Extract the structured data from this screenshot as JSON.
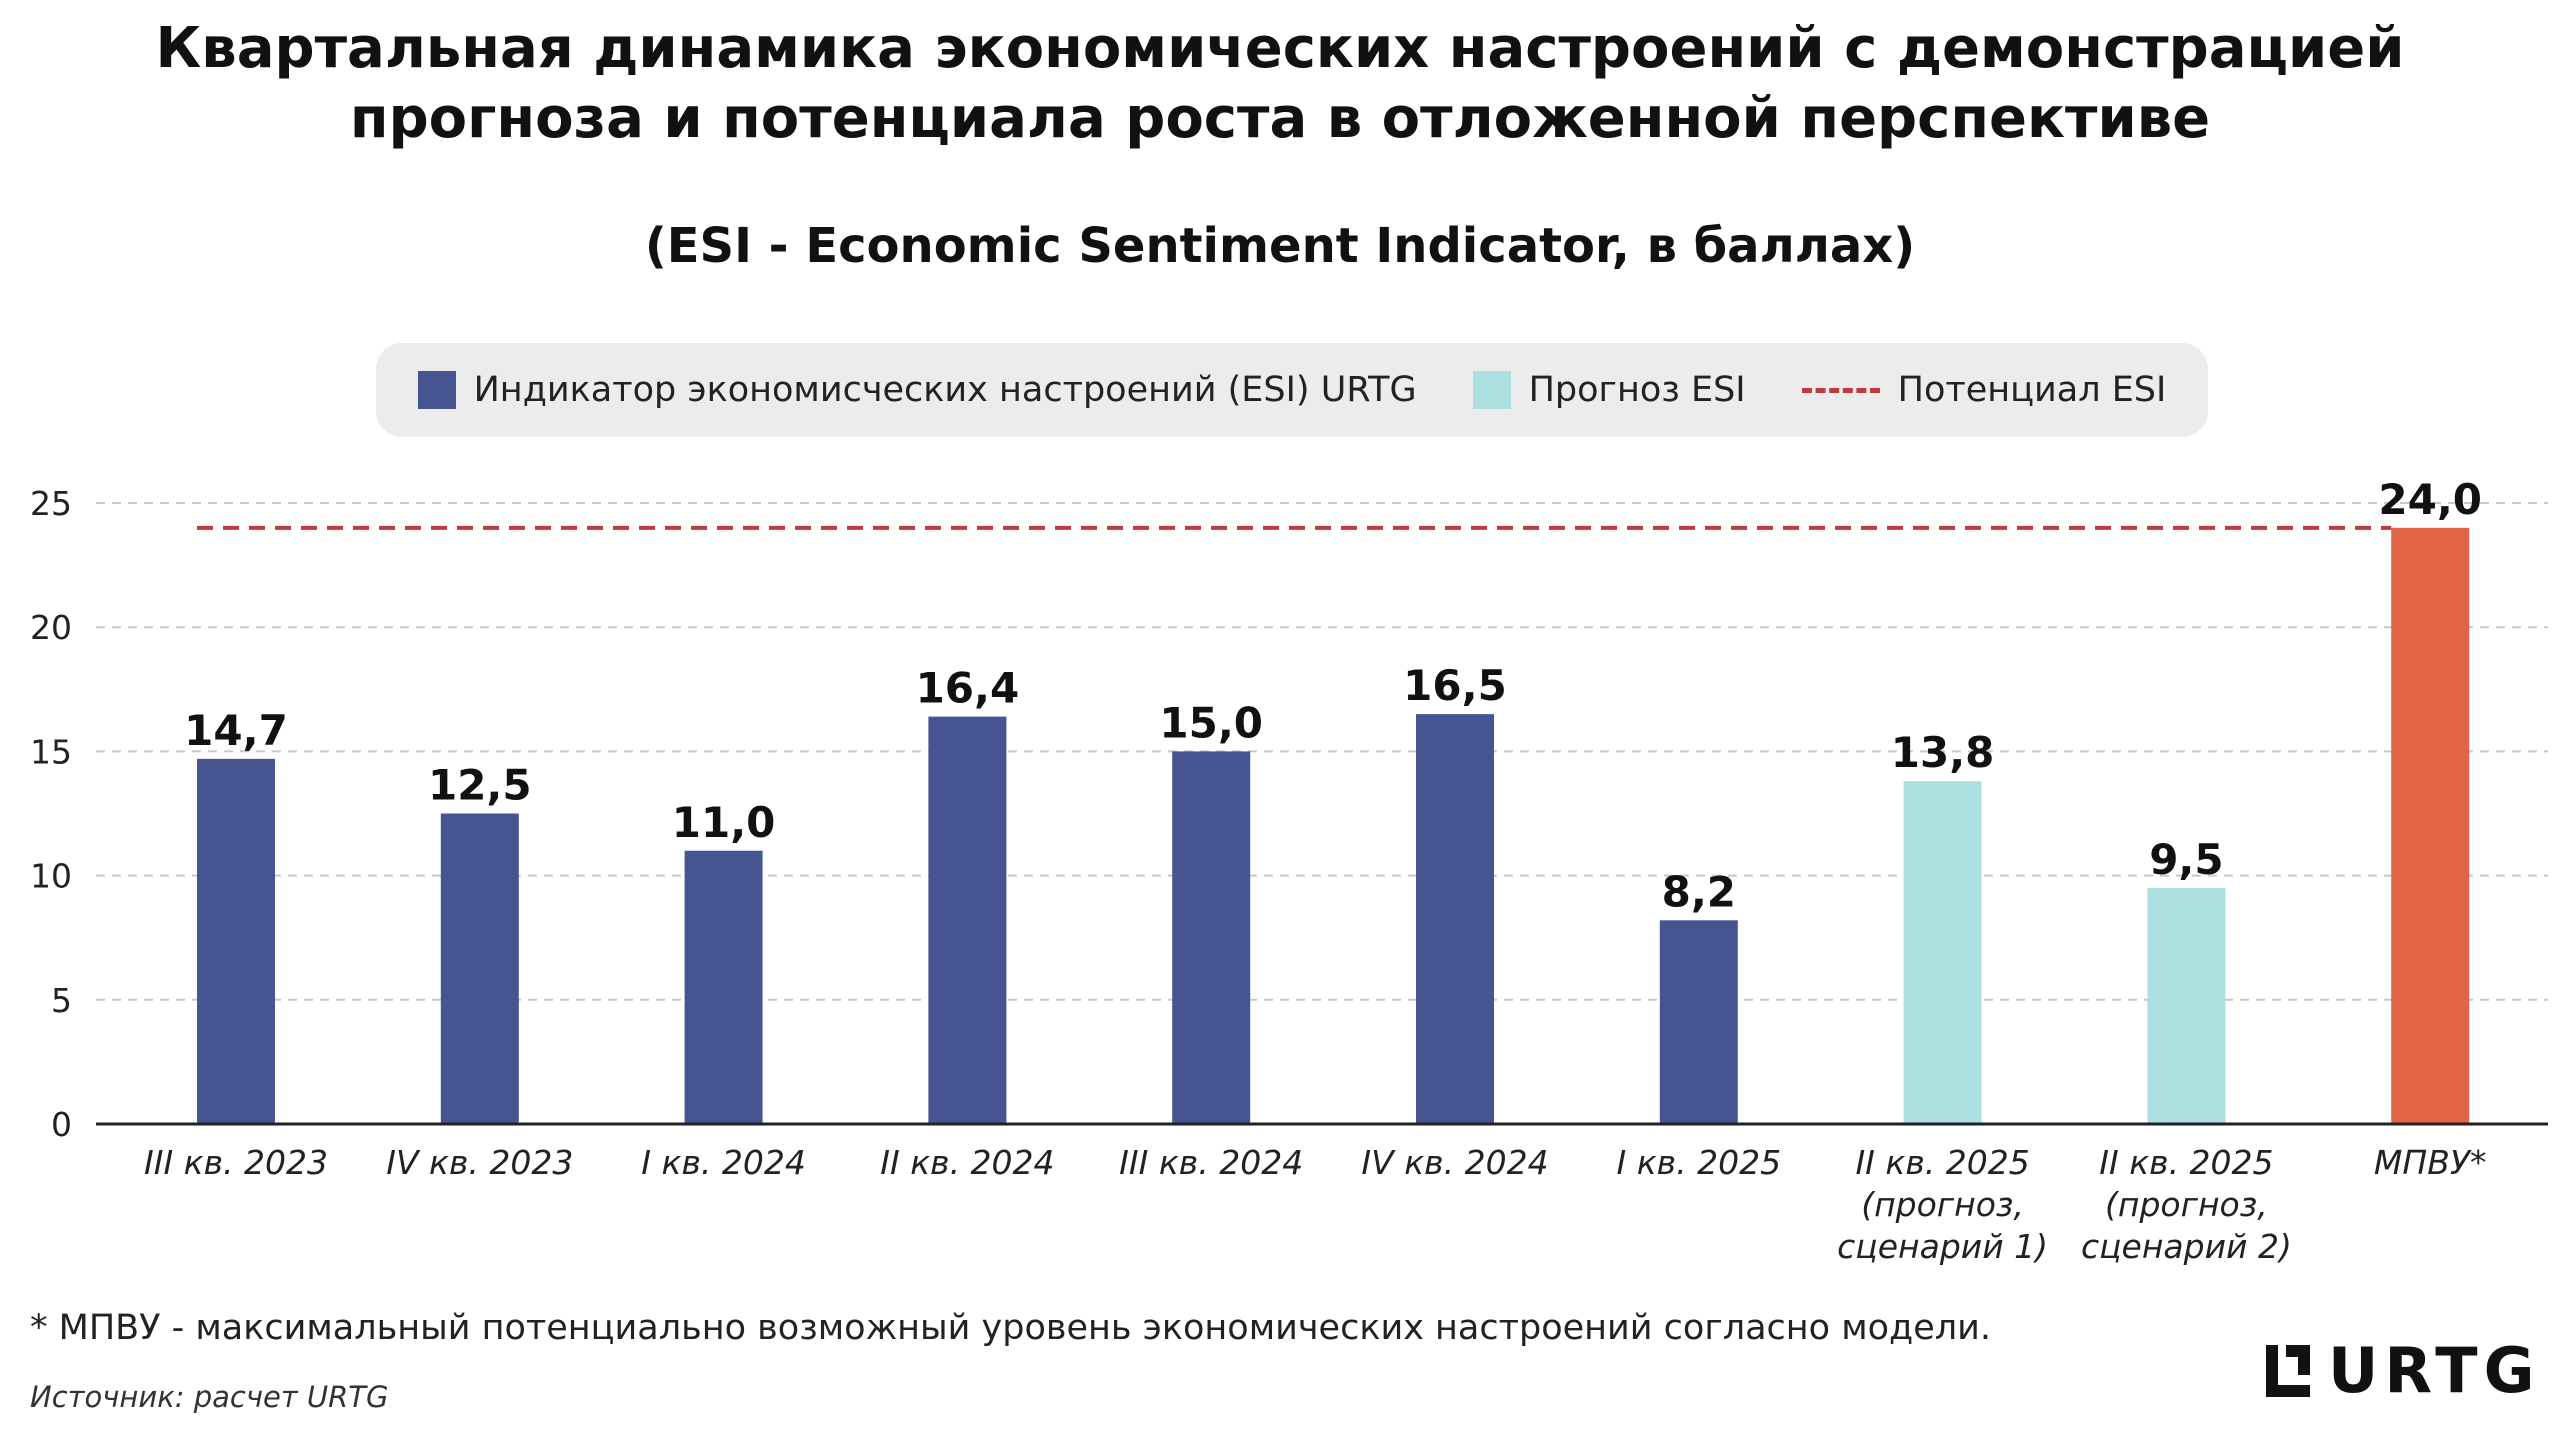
{
  "title_line1": "Квартальная динамика экономических настроений с демонстрацией",
  "title_line2": "прогноза и потенциала роста в отложенной перспективе",
  "subtitle": "(ESI - Economic Sentiment Indicator, в баллах)",
  "legend": {
    "esi": "Индикатор экономисческих настроений (ESI) URTG",
    "forecast": "Прогноз ESI",
    "potential": "Потенциал ESI"
  },
  "footnote": "* МПВУ - максимальный потенциально возможный уровень экономических настроений согласно модели.",
  "source": "Источник: расчет URTG",
  "logo_text": "URTG",
  "colors": {
    "esi": "#465592",
    "forecast": "#acdfe0",
    "max": "#e26446",
    "potential_line": "#c0393b",
    "grid": "#c8c8c8"
  },
  "chart_data": {
    "type": "bar",
    "categories": [
      [
        "III кв. 2023"
      ],
      [
        "IV кв. 2023"
      ],
      [
        "I кв. 2024"
      ],
      [
        "II кв. 2024"
      ],
      [
        "III кв. 2024"
      ],
      [
        "IV кв. 2024"
      ],
      [
        "I кв. 2025"
      ],
      [
        "II кв. 2025",
        "(прогноз,",
        "сценарий 1)"
      ],
      [
        "II кв. 2025",
        "(прогноз,",
        "сценарий 2)"
      ],
      [
        "МПВУ*"
      ]
    ],
    "values": [
      14.7,
      12.5,
      11.0,
      16.4,
      15.0,
      16.5,
      8.2,
      13.8,
      9.5,
      24.0
    ],
    "value_labels": [
      "14,7",
      "12,5",
      "11,0",
      "16,4",
      "15,0",
      "16,5",
      "8,2",
      "13,8",
      "9,5",
      "24,0"
    ],
    "bar_kinds": [
      "esi",
      "esi",
      "esi",
      "esi",
      "esi",
      "esi",
      "esi",
      "forecast",
      "forecast",
      "max"
    ],
    "potential_line_value": 24.0,
    "ylim": [
      0,
      25
    ],
    "yticks": [
      0,
      5,
      10,
      15,
      20,
      25
    ],
    "grid": true,
    "xlabel": "",
    "ylabel": ""
  }
}
